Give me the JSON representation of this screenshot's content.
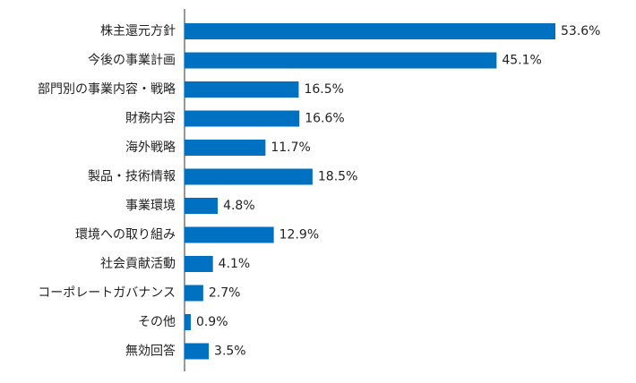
{
  "chart_data": {
    "type": "bar",
    "orientation": "horizontal",
    "categories": [
      "株主還元方針",
      "今後の事業計画",
      "部門別の事業内容・戦略",
      "財務内容",
      "海外戦略",
      "製品・技術情報",
      "事業環境",
      "環境への取り組み",
      "社会貢献活動",
      "コーポレートガバナンス",
      "その他",
      "無効回答"
    ],
    "values": [
      53.6,
      45.1,
      16.5,
      16.6,
      11.7,
      18.5,
      4.8,
      12.9,
      4.1,
      2.7,
      0.9,
      3.5
    ],
    "value_labels": [
      "53.6%",
      "45.1%",
      "16.5%",
      "16.6%",
      "11.7%",
      "18.5%",
      "4.8%",
      "12.9%",
      "4.1%",
      "2.7%",
      "0.9%",
      "3.5%"
    ],
    "xlim": [
      0,
      58
    ],
    "grid": false,
    "legend": "none",
    "bar_color": "#0070c0",
    "axis_color": "#333333",
    "text_color": "#222222"
  }
}
